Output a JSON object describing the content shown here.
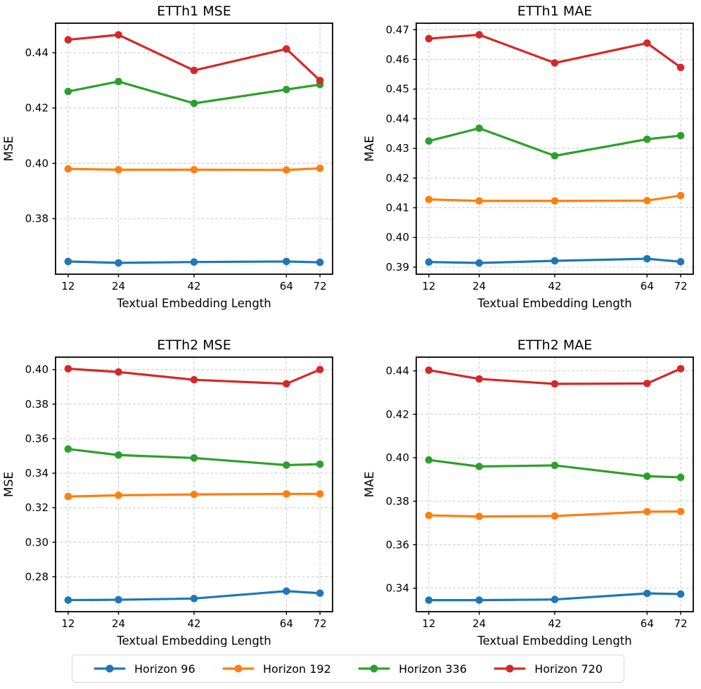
{
  "figure": {
    "background": "#ffffff",
    "grid_color": "#cccccc",
    "spine_color": "#000000"
  },
  "legend": {
    "position": "bottom-center",
    "items": [
      {
        "label": "Horizon 96",
        "color": "#1f77b4"
      },
      {
        "label": "Horizon 192",
        "color": "#ff7f0e"
      },
      {
        "label": "Horizon 336",
        "color": "#2ca02c"
      },
      {
        "label": "Horizon 720",
        "color": "#d62728"
      }
    ]
  },
  "chart_data": [
    {
      "type": "line",
      "title": "ETTh1 MSE",
      "xlabel": "Textual Embedding Length",
      "ylabel": "MSE",
      "x": [
        12,
        24,
        42,
        64,
        72
      ],
      "xlim": [
        9,
        75
      ],
      "ylim": [
        0.3599,
        0.4507
      ],
      "yticks": [
        0.38,
        0.4,
        0.42,
        0.44
      ],
      "grid": true,
      "series": [
        {
          "name": "Horizon 96",
          "color": "#1f77b4",
          "values": [
            0.3645,
            0.364,
            0.3643,
            0.3645,
            0.3642
          ]
        },
        {
          "name": "Horizon 192",
          "color": "#ff7f0e",
          "values": [
            0.398,
            0.3977,
            0.3977,
            0.3976,
            0.3982
          ]
        },
        {
          "name": "Horizon 336",
          "color": "#2ca02c",
          "values": [
            0.426,
            0.4296,
            0.4217,
            0.4267,
            0.4285
          ]
        },
        {
          "name": "Horizon 720",
          "color": "#d62728",
          "values": [
            0.4447,
            0.4465,
            0.4336,
            0.4414,
            0.43
          ]
        }
      ]
    },
    {
      "type": "line",
      "title": "ETTh1 MAE",
      "xlabel": "Textual Embedding Length",
      "ylabel": "MAE",
      "x": [
        12,
        24,
        42,
        64,
        72
      ],
      "xlim": [
        9,
        75
      ],
      "ylim": [
        0.3876,
        0.4722
      ],
      "yticks": [
        0.39,
        0.4,
        0.41,
        0.42,
        0.43,
        0.44,
        0.45,
        0.46,
        0.47
      ],
      "grid": true,
      "series": [
        {
          "name": "Horizon 96",
          "color": "#1f77b4",
          "values": [
            0.3917,
            0.3914,
            0.3921,
            0.3928,
            0.3918
          ]
        },
        {
          "name": "Horizon 192",
          "color": "#ff7f0e",
          "values": [
            0.4128,
            0.4123,
            0.4123,
            0.4124,
            0.4141
          ]
        },
        {
          "name": "Horizon 336",
          "color": "#2ca02c",
          "values": [
            0.4325,
            0.4368,
            0.4275,
            0.4331,
            0.4343
          ]
        },
        {
          "name": "Horizon 720",
          "color": "#d62728",
          "values": [
            0.467,
            0.4683,
            0.4588,
            0.4655,
            0.4573
          ]
        }
      ]
    },
    {
      "type": "line",
      "title": "ETTh2 MSE",
      "xlabel": "Textual Embedding Length",
      "ylabel": "MSE",
      "x": [
        12,
        24,
        42,
        64,
        72
      ],
      "xlim": [
        9,
        75
      ],
      "ylim": [
        0.2598,
        0.4072
      ],
      "yticks": [
        0.28,
        0.3,
        0.32,
        0.34,
        0.36,
        0.38,
        0.4
      ],
      "grid": true,
      "series": [
        {
          "name": "Horizon 96",
          "color": "#1f77b4",
          "values": [
            0.2665,
            0.2667,
            0.2674,
            0.2717,
            0.2705
          ]
        },
        {
          "name": "Horizon 192",
          "color": "#ff7f0e",
          "values": [
            0.3265,
            0.3272,
            0.3277,
            0.328,
            0.328
          ]
        },
        {
          "name": "Horizon 336",
          "color": "#2ca02c",
          "values": [
            0.354,
            0.3505,
            0.3488,
            0.3447,
            0.3452
          ]
        },
        {
          "name": "Horizon 720",
          "color": "#d62728",
          "values": [
            0.4005,
            0.3986,
            0.3941,
            0.3918,
            0.4
          ]
        }
      ]
    },
    {
      "type": "line",
      "title": "ETTh2 MAE",
      "xlabel": "Textual Embedding Length",
      "ylabel": "MAE",
      "x": [
        12,
        24,
        42,
        64,
        72
      ],
      "xlim": [
        9,
        75
      ],
      "ylim": [
        0.3292,
        0.4463
      ],
      "yticks": [
        0.34,
        0.36,
        0.38,
        0.4,
        0.42,
        0.44
      ],
      "grid": true,
      "series": [
        {
          "name": "Horizon 96",
          "color": "#1f77b4",
          "values": [
            0.3345,
            0.3345,
            0.3348,
            0.3376,
            0.3373
          ]
        },
        {
          "name": "Horizon 192",
          "color": "#ff7f0e",
          "values": [
            0.3735,
            0.373,
            0.3732,
            0.3752,
            0.3753
          ]
        },
        {
          "name": "Horizon 336",
          "color": "#2ca02c",
          "values": [
            0.399,
            0.396,
            0.3965,
            0.3915,
            0.391
          ]
        },
        {
          "name": "Horizon 720",
          "color": "#d62728",
          "values": [
            0.4403,
            0.4363,
            0.434,
            0.4342,
            0.441
          ]
        }
      ]
    }
  ]
}
